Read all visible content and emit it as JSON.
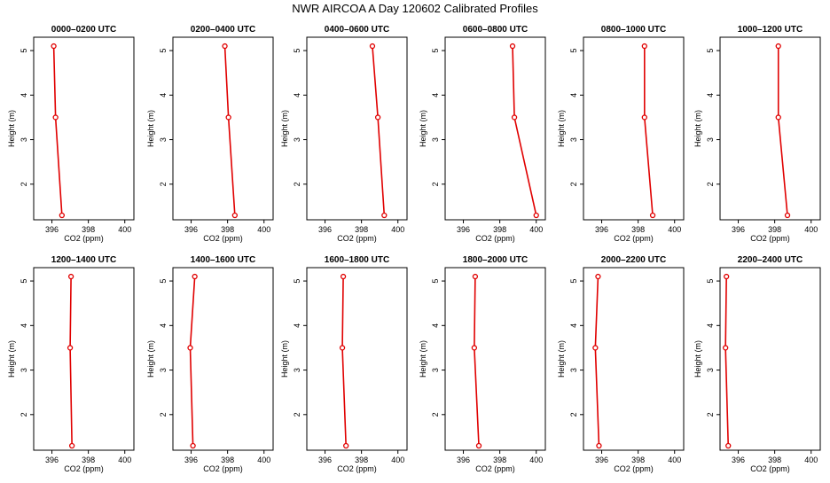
{
  "chart_data": {
    "type": "line",
    "title": "NWR AIRCOA A  Day 120602  Calibrated Profiles",
    "xlabel": "CO2 (ppm)",
    "ylabel": "Height (m)",
    "xlim": [
      395,
      400.5
    ],
    "ylim": [
      1.2,
      5.3
    ],
    "xticks": [
      396,
      398,
      400
    ],
    "yticks": [
      2,
      3,
      4,
      5
    ],
    "heights": [
      1.3,
      3.5,
      5.1
    ],
    "line_color": "#e00000",
    "panels": [
      {
        "title": "0000–0200 UTC",
        "x": [
          396.55,
          396.2,
          396.1
        ]
      },
      {
        "title": "0200–0400 UTC",
        "x": [
          398.4,
          398.05,
          397.85
        ]
      },
      {
        "title": "0400–0600 UTC",
        "x": [
          399.25,
          398.9,
          398.6
        ]
      },
      {
        "title": "0600–0800 UTC",
        "x": [
          400.0,
          398.8,
          398.7
        ]
      },
      {
        "title": "0800–1000 UTC",
        "x": [
          398.8,
          398.35,
          398.35
        ]
      },
      {
        "title": "1000–1200 UTC",
        "x": [
          398.7,
          398.2,
          398.2
        ]
      },
      {
        "title": "1200–1400 UTC",
        "x": [
          397.1,
          397.0,
          397.05
        ]
      },
      {
        "title": "1400–1600 UTC",
        "x": [
          396.1,
          395.95,
          396.2
        ]
      },
      {
        "title": "1600–1800 UTC",
        "x": [
          397.15,
          396.95,
          397.0
        ]
      },
      {
        "title": "1800–2000 UTC",
        "x": [
          396.85,
          396.6,
          396.65
        ]
      },
      {
        "title": "2000–2200 UTC",
        "x": [
          395.85,
          395.65,
          395.8
        ]
      },
      {
        "title": "2200–2400 UTC",
        "x": [
          395.45,
          395.3,
          395.35
        ]
      }
    ]
  }
}
